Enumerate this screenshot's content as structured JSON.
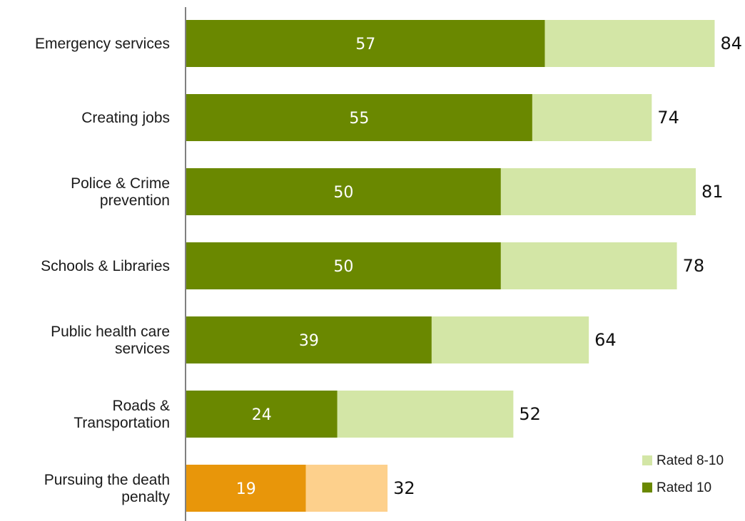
{
  "chart_data": {
    "type": "bar",
    "orientation": "horizontal",
    "stacked": "overlay",
    "categories": [
      [
        "Emergency services"
      ],
      [
        "Creating jobs"
      ],
      [
        "Police & Crime",
        "prevention"
      ],
      [
        "Schools & Libraries"
      ],
      [
        "Public health care",
        "services"
      ],
      [
        "Roads &",
        "Transportation"
      ],
      [
        "Pursuing the death",
        "penalty"
      ]
    ],
    "series": [
      {
        "name": "Rated 8-10",
        "values": [
          84,
          74,
          81,
          78,
          64,
          52,
          32
        ]
      },
      {
        "name": "Rated 10",
        "values": [
          57,
          55,
          50,
          50,
          39,
          24,
          19
        ]
      }
    ],
    "colors": {
      "rated_10": "#6a8800",
      "rated_8_10": "#d3e6a6",
      "highlight_rated_10": "#e8960a",
      "highlight_rated_8_10": "#fdd08c"
    },
    "highlight_category_index": 6,
    "xlim": [
      0,
      100
    ],
    "grid": false,
    "legend_position": "bottom-right",
    "title": "",
    "xlabel": "",
    "ylabel": ""
  }
}
